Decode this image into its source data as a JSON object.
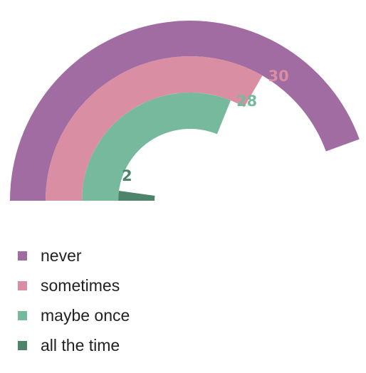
{
  "chart_data": {
    "type": "radial-bar",
    "title": "",
    "max_value": 45,
    "series": [
      {
        "name": "never",
        "value": 40,
        "label": "40",
        "color": "#a06ca1"
      },
      {
        "name": "sometimes",
        "value": 30,
        "label": "30",
        "color": "#d98ea3"
      },
      {
        "name": "maybe once",
        "value": 28,
        "label": "28",
        "color": "#76b99d"
      },
      {
        "name": "all the time",
        "value": 2,
        "label": "2",
        "color": "#4e8469"
      }
    ],
    "legend": {
      "position": "bottom-left"
    }
  }
}
